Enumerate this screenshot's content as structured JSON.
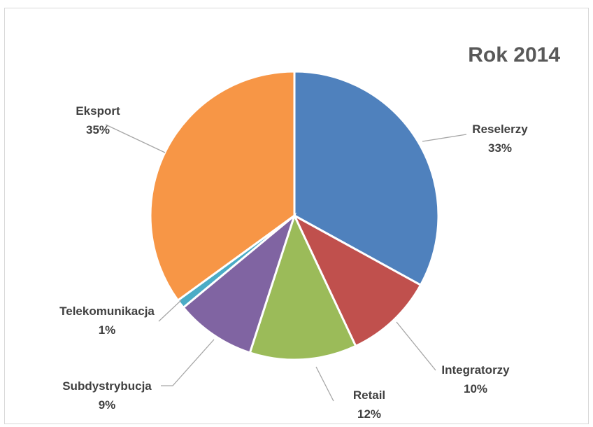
{
  "chart_data": {
    "type": "pie",
    "title": "Rok 2014",
    "slices": [
      {
        "label": "Reselerzy",
        "value": 33,
        "value_label": "33%",
        "color": "#4f81bd"
      },
      {
        "label": "Integratorzy",
        "value": 10,
        "value_label": "10%",
        "color": "#c0504d"
      },
      {
        "label": "Retail",
        "value": 12,
        "value_label": "12%",
        "color": "#9bbb59"
      },
      {
        "label": "Subdystrybucja",
        "value": 9,
        "value_label": "9%",
        "color": "#8064a2"
      },
      {
        "label": "Telekomunikacja",
        "value": 1,
        "value_label": "1%",
        "color": "#4bacc6"
      },
      {
        "label": "Eksport",
        "value": 35,
        "value_label": "35%",
        "color": "#f79646"
      }
    ],
    "legend": "none",
    "data_labels": "outside-with-leader-lines"
  }
}
